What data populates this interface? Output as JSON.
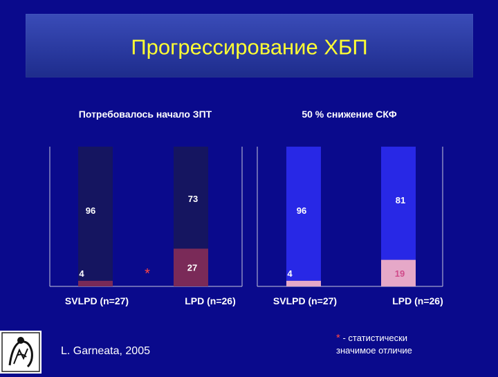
{
  "slide": {
    "title": "Прогрессирование ХБП",
    "author": "L. Garneata, 2005",
    "footnote": {
      "star": "*",
      "text_line1": " - статистически",
      "text_line2": "значимое отличие"
    }
  },
  "colors": {
    "background": "#0a0a8c",
    "title_text": "#ffff33",
    "chart1_top": "#151560",
    "chart1_bottom": "#7a2a58",
    "chart2_top": "#2828e6",
    "chart2_bottom": "#e6a8c8",
    "significance_star": "#ff4444"
  },
  "chart_data": [
    {
      "type": "bar",
      "stacked": true,
      "percent": true,
      "title": "Потребовалось начало ЗПТ",
      "categories": [
        "SVLPD (n=27)",
        "LPD (n=26)"
      ],
      "series": [
        {
          "values": [
            4,
            27
          ]
        },
        {
          "values": [
            96,
            73
          ]
        }
      ],
      "annotations": [
        {
          "text": "*",
          "category": "LPD (n=26)"
        }
      ]
    },
    {
      "type": "bar",
      "stacked": true,
      "percent": true,
      "title": "50 % снижение СКФ",
      "categories": [
        "SVLPD (n=27)",
        "LPD (n=26)"
      ],
      "series": [
        {
          "values": [
            4,
            19
          ]
        },
        {
          "values": [
            96,
            81
          ]
        }
      ]
    }
  ]
}
